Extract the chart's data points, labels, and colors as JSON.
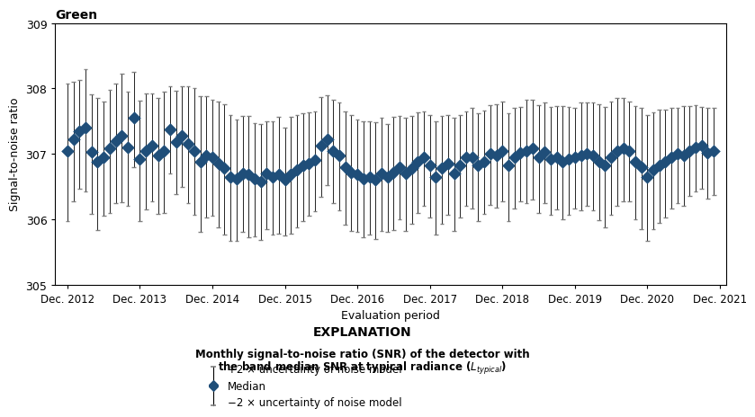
{
  "title": "Green",
  "xlabel": "Evaluation period",
  "ylabel": "Signal-to-noise ratio",
  "ylim": [
    305,
    309
  ],
  "yticks": [
    305,
    306,
    307,
    308,
    309
  ],
  "marker_color": "#1F4E79",
  "explanation_title": "EXPLANATION",
  "legend_line1": "Monthly signal-to-noise ratio (SNR) of the detector with",
  "legend_line2": "the band median SNR at typical radiance (",
  "legend_line2_end": ")",
  "legend_plus2": "+2 × uncertainty of noise model",
  "legend_median": "Median",
  "legend_minus2": "−2 × uncertainty of noise model",
  "x_tick_labels": [
    "Dec. 2012",
    "Dec. 2013",
    "Dec. 2014",
    "Dec. 2015",
    "Dec. 2016",
    "Dec. 2017",
    "Dec. 2018",
    "Dec. 2019",
    "Dec. 2020",
    "Dec. 2021"
  ],
  "medians": [
    307.05,
    307.22,
    307.35,
    307.4,
    307.03,
    306.88,
    306.95,
    307.08,
    307.2,
    307.28,
    307.1,
    307.55,
    306.92,
    307.05,
    307.12,
    306.98,
    307.05,
    307.38,
    307.18,
    307.28,
    307.15,
    307.05,
    306.88,
    306.98,
    306.95,
    306.85,
    306.78,
    306.65,
    306.62,
    306.7,
    306.68,
    306.62,
    306.58,
    306.7,
    306.65,
    306.68,
    306.6,
    306.68,
    306.75,
    306.82,
    306.85,
    306.9,
    307.12,
    307.22,
    307.05,
    306.98,
    306.8,
    306.72,
    306.68,
    306.62,
    306.65,
    306.6,
    306.7,
    306.65,
    306.72,
    306.8,
    306.7,
    306.78,
    306.88,
    306.95,
    306.82,
    306.65,
    306.78,
    306.85,
    306.7,
    306.82,
    306.95,
    306.95,
    306.82,
    306.88,
    307.0,
    306.98,
    307.05,
    306.82,
    306.95,
    307.02,
    307.05,
    307.08,
    306.95,
    307.03,
    306.92,
    306.95,
    306.88,
    306.92,
    306.95,
    306.98,
    307.0,
    306.98,
    306.88,
    306.82,
    306.95,
    307.05,
    307.08,
    307.05,
    306.88,
    306.8,
    306.65,
    306.75,
    306.82,
    306.88,
    306.95,
    307.0,
    306.98,
    307.05,
    307.1,
    307.12,
    307.02,
    307.05
  ],
  "upper_errors": [
    1.02,
    0.88,
    0.78,
    0.9,
    0.88,
    0.98,
    0.85,
    0.9,
    0.88,
    0.95,
    0.85,
    0.7,
    0.9,
    0.88,
    0.8,
    0.88,
    0.9,
    0.65,
    0.78,
    0.75,
    0.88,
    0.95,
    1.0,
    0.9,
    0.88,
    0.95,
    0.98,
    0.95,
    0.9,
    0.88,
    0.9,
    0.85,
    0.88,
    0.8,
    0.85,
    0.88,
    0.8,
    0.88,
    0.85,
    0.8,
    0.78,
    0.75,
    0.75,
    0.68,
    0.78,
    0.8,
    0.85,
    0.88,
    0.85,
    0.88,
    0.85,
    0.88,
    0.85,
    0.8,
    0.85,
    0.78,
    0.85,
    0.8,
    0.75,
    0.7,
    0.78,
    0.85,
    0.8,
    0.75,
    0.85,
    0.78,
    0.7,
    0.75,
    0.8,
    0.78,
    0.75,
    0.78,
    0.75,
    0.8,
    0.75,
    0.7,
    0.78,
    0.75,
    0.8,
    0.75,
    0.8,
    0.78,
    0.85,
    0.8,
    0.75,
    0.8,
    0.78,
    0.8,
    0.88,
    0.9,
    0.85,
    0.8,
    0.78,
    0.75,
    0.85,
    0.9,
    0.95,
    0.88,
    0.85,
    0.8,
    0.75,
    0.7,
    0.75,
    0.68,
    0.65,
    0.6,
    0.68,
    0.65
  ],
  "lower_errors": [
    1.08,
    0.95,
    0.88,
    0.98,
    0.95,
    1.05,
    0.9,
    0.98,
    0.95,
    1.02,
    0.9,
    0.75,
    0.95,
    0.9,
    0.85,
    0.9,
    0.95,
    0.68,
    0.8,
    0.78,
    0.9,
    0.98,
    1.08,
    0.95,
    0.9,
    0.98,
    1.02,
    0.98,
    0.95,
    0.9,
    0.95,
    0.88,
    0.9,
    0.85,
    0.88,
    0.9,
    0.85,
    0.9,
    0.88,
    0.85,
    0.8,
    0.78,
    0.78,
    0.7,
    0.8,
    0.85,
    0.88,
    0.9,
    0.88,
    0.9,
    0.88,
    0.9,
    0.88,
    0.85,
    0.88,
    0.8,
    0.88,
    0.85,
    0.78,
    0.75,
    0.8,
    0.88,
    0.85,
    0.78,
    0.88,
    0.8,
    0.75,
    0.78,
    0.85,
    0.8,
    0.78,
    0.8,
    0.78,
    0.85,
    0.78,
    0.75,
    0.8,
    0.78,
    0.85,
    0.78,
    0.85,
    0.8,
    0.88,
    0.85,
    0.78,
    0.85,
    0.8,
    0.85,
    0.9,
    0.95,
    0.88,
    0.85,
    0.8,
    0.78,
    0.88,
    0.95,
    0.98,
    0.9,
    0.88,
    0.85,
    0.78,
    0.75,
    0.78,
    0.7,
    0.68,
    0.65,
    0.7,
    0.68
  ]
}
